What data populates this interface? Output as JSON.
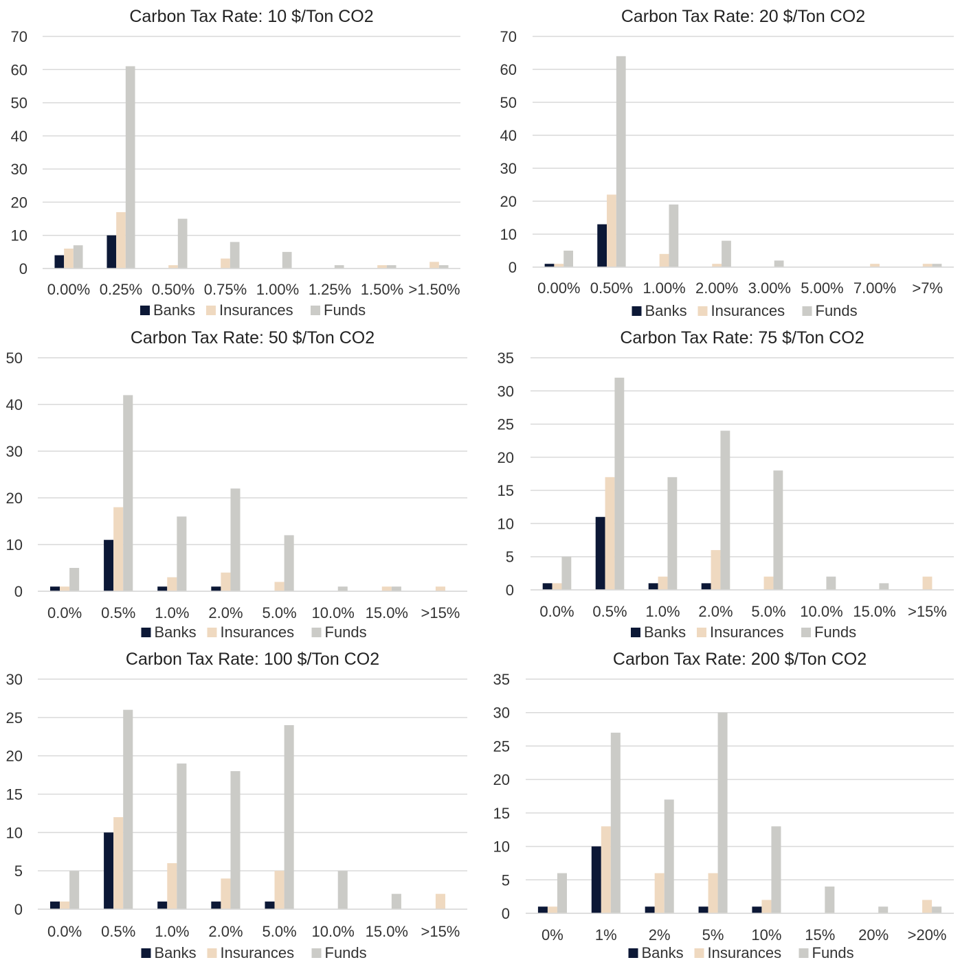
{
  "colors": {
    "Banks": "#0c1836",
    "Insurances": "#efd9c0",
    "Funds": "#cbcbc7",
    "grid": "#d9d9d9"
  },
  "chart_data": [
    {
      "type": "bar",
      "title": "Carbon Tax Rate: 10 $/Ton CO2",
      "categories": [
        "0.00%",
        "0.25%",
        "0.50%",
        "0.75%",
        "1.00%",
        "1.25%",
        "1.50%",
        ">1.50%"
      ],
      "series": [
        {
          "name": "Banks",
          "values": [
            4,
            10,
            0,
            0,
            0,
            0,
            0,
            0
          ]
        },
        {
          "name": "Insurances",
          "values": [
            6,
            17,
            1,
            3,
            0,
            0,
            1,
            2
          ]
        },
        {
          "name": "Funds",
          "values": [
            7,
            61,
            15,
            8,
            5,
            1,
            1,
            1
          ]
        }
      ],
      "ylim": [
        0,
        70
      ],
      "yticks": [
        0,
        10,
        20,
        30,
        40,
        50,
        60,
        70
      ],
      "grid": true,
      "legend": "bottom"
    },
    {
      "type": "bar",
      "title": "Carbon Tax Rate: 20 $/Ton CO2",
      "categories": [
        "0.00%",
        "0.50%",
        "1.00%",
        "2.00%",
        "3.00%",
        "5.00%",
        "7.00%",
        ">7%"
      ],
      "series": [
        {
          "name": "Banks",
          "values": [
            1,
            13,
            0,
            0,
            0,
            0,
            0,
            0
          ]
        },
        {
          "name": "Insurances",
          "values": [
            1,
            22,
            4,
            1,
            0,
            0,
            1,
            1
          ]
        },
        {
          "name": "Funds",
          "values": [
            5,
            64,
            19,
            8,
            2,
            0,
            0,
            1
          ]
        }
      ],
      "ylim": [
        0,
        70
      ],
      "yticks": [
        0,
        10,
        20,
        30,
        40,
        50,
        60,
        70
      ],
      "grid": true,
      "legend": "bottom"
    },
    {
      "type": "bar",
      "title": "Carbon Tax Rate: 50 $/Ton CO2",
      "categories": [
        "0.0%",
        "0.5%",
        "1.0%",
        "2.0%",
        "5.0%",
        "10.0%",
        "15.0%",
        ">15%"
      ],
      "series": [
        {
          "name": "Banks",
          "values": [
            1,
            11,
            1,
            1,
            0,
            0,
            0,
            0
          ]
        },
        {
          "name": "Insurances",
          "values": [
            1,
            18,
            3,
            4,
            2,
            0,
            1,
            1
          ]
        },
        {
          "name": "Funds",
          "values": [
            5,
            42,
            16,
            22,
            12,
            1,
            1,
            0
          ]
        }
      ],
      "ylim": [
        0,
        50
      ],
      "yticks": [
        0,
        10,
        20,
        30,
        40,
        50
      ],
      "grid": true,
      "legend": "bottom"
    },
    {
      "type": "bar",
      "title": "Carbon Tax Rate: 75 $/Ton CO2",
      "categories": [
        "0.0%",
        "0.5%",
        "1.0%",
        "2.0%",
        "5.0%",
        "10.0%",
        "15.0%",
        ">15%"
      ],
      "series": [
        {
          "name": "Banks",
          "values": [
            1,
            11,
            1,
            1,
            0,
            0,
            0,
            0
          ]
        },
        {
          "name": "Insurances",
          "values": [
            1,
            17,
            2,
            6,
            2,
            0,
            0,
            2
          ]
        },
        {
          "name": "Funds",
          "values": [
            5,
            32,
            17,
            24,
            18,
            2,
            1,
            0
          ]
        }
      ],
      "ylim": [
        0,
        35
      ],
      "yticks": [
        0,
        5,
        10,
        15,
        20,
        25,
        30,
        35
      ],
      "grid": true,
      "legend": "bottom"
    },
    {
      "type": "bar",
      "title": "Carbon Tax Rate: 100 $/Ton CO2",
      "categories": [
        "0.0%",
        "0.5%",
        "1.0%",
        "2.0%",
        "5.0%",
        "10.0%",
        "15.0%",
        ">15%"
      ],
      "series": [
        {
          "name": "Banks",
          "values": [
            1,
            10,
            1,
            1,
            1,
            0,
            0,
            0
          ]
        },
        {
          "name": "Insurances",
          "values": [
            1,
            12,
            6,
            4,
            5,
            0,
            0,
            2
          ]
        },
        {
          "name": "Funds",
          "values": [
            5,
            26,
            19,
            18,
            24,
            5,
            2,
            0
          ]
        }
      ],
      "ylim": [
        0,
        30
      ],
      "yticks": [
        0,
        5,
        10,
        15,
        20,
        25,
        30
      ],
      "grid": true,
      "legend": "bottom"
    },
    {
      "type": "bar",
      "title": "Carbon Tax Rate: 200 $/Ton CO2",
      "categories": [
        "0%",
        "1%",
        "2%",
        "5%",
        "10%",
        "15%",
        "20%",
        ">20%"
      ],
      "series": [
        {
          "name": "Banks",
          "values": [
            1,
            10,
            1,
            1,
            1,
            0,
            0,
            0
          ]
        },
        {
          "name": "Insurances",
          "values": [
            1,
            13,
            6,
            6,
            2,
            0,
            0,
            2
          ]
        },
        {
          "name": "Funds",
          "values": [
            6,
            27,
            17,
            30,
            13,
            4,
            1,
            1
          ]
        }
      ],
      "ylim": [
        0,
        35
      ],
      "yticks": [
        0,
        5,
        10,
        15,
        20,
        25,
        30,
        35
      ],
      "grid": true,
      "legend": "bottom"
    }
  ]
}
